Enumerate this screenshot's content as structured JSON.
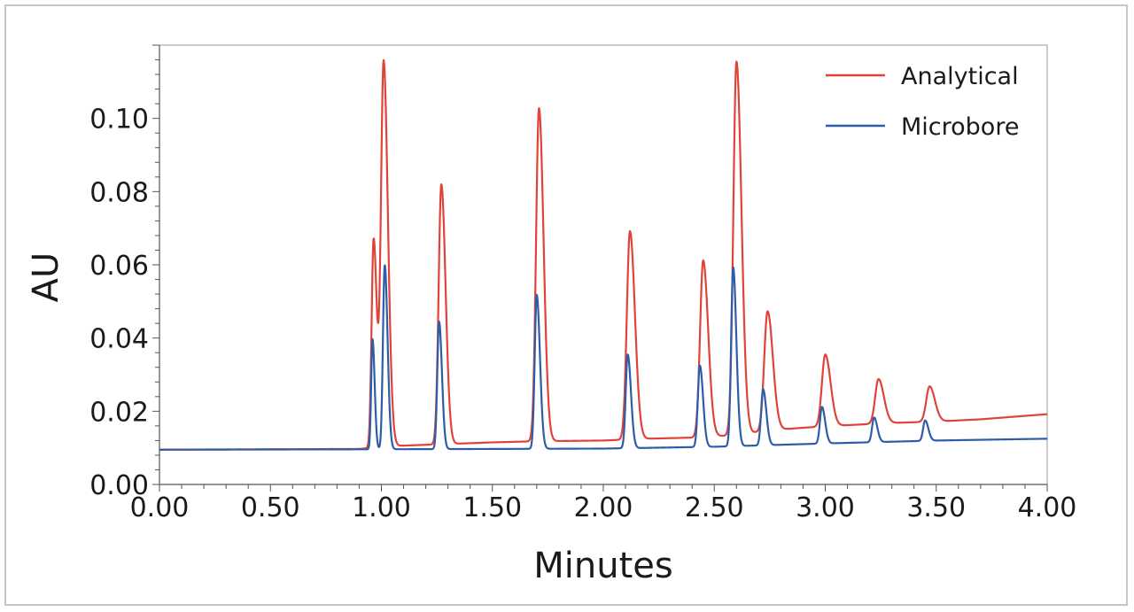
{
  "chart_data": {
    "type": "line",
    "title": "",
    "xlabel": "Minutes",
    "ylabel": "AU",
    "xlim": [
      0.0,
      4.0
    ],
    "ylim": [
      0.0,
      0.12
    ],
    "x_ticks": [
      "0.00",
      "0.50",
      "1.00",
      "1.50",
      "2.00",
      "2.50",
      "3.00",
      "3.50",
      "4.00"
    ],
    "y_ticks": [
      "0.00",
      "0.02",
      "0.04",
      "0.06",
      "0.08",
      "0.10"
    ],
    "legend_position": "top-right",
    "grid": false,
    "series": [
      {
        "name": "Analytical",
        "color": "#e0433a",
        "baseline": [
          [
            0.0,
            0.0095
          ],
          [
            0.9,
            0.0097
          ],
          [
            1.05,
            0.0105
          ],
          [
            1.5,
            0.0115
          ],
          [
            1.7,
            0.0118
          ],
          [
            2.0,
            0.012
          ],
          [
            2.2,
            0.0125
          ],
          [
            2.4,
            0.0128
          ],
          [
            2.6,
            0.0135
          ],
          [
            2.75,
            0.0148
          ],
          [
            2.9,
            0.0155
          ],
          [
            3.1,
            0.0162
          ],
          [
            3.3,
            0.0168
          ],
          [
            3.5,
            0.0172
          ],
          [
            3.7,
            0.0178
          ],
          [
            4.0,
            0.0192
          ]
        ],
        "peaks": [
          {
            "t": 0.965,
            "h": 0.0672,
            "w": 0.009
          },
          {
            "t": 1.01,
            "h": 0.1155,
            "w": 0.012
          },
          {
            "t": 1.27,
            "h": 0.082,
            "w": 0.012
          },
          {
            "t": 1.71,
            "h": 0.1028,
            "w": 0.013
          },
          {
            "t": 2.12,
            "h": 0.0692,
            "w": 0.014
          },
          {
            "t": 2.45,
            "h": 0.0612,
            "w": 0.014
          },
          {
            "t": 2.6,
            "h": 0.1155,
            "w": 0.014
          },
          {
            "t": 2.74,
            "h": 0.0473,
            "w": 0.015
          },
          {
            "t": 3.0,
            "h": 0.0355,
            "w": 0.015
          },
          {
            "t": 3.24,
            "h": 0.0288,
            "w": 0.015
          },
          {
            "t": 3.47,
            "h": 0.0268,
            "w": 0.015
          }
        ]
      },
      {
        "name": "Microbore",
        "color": "#2e5da8",
        "baseline": [
          [
            0.0,
            0.0095
          ],
          [
            0.9,
            0.0096
          ],
          [
            1.5,
            0.0097
          ],
          [
            2.0,
            0.0098
          ],
          [
            2.5,
            0.0103
          ],
          [
            3.0,
            0.0112
          ],
          [
            3.5,
            0.012
          ],
          [
            4.0,
            0.0125
          ]
        ],
        "peaks": [
          {
            "t": 0.96,
            "h": 0.0397,
            "w": 0.006
          },
          {
            "t": 1.015,
            "h": 0.06,
            "w": 0.008
          },
          {
            "t": 1.26,
            "h": 0.0445,
            "w": 0.008
          },
          {
            "t": 1.7,
            "h": 0.0518,
            "w": 0.009
          },
          {
            "t": 2.11,
            "h": 0.0355,
            "w": 0.009
          },
          {
            "t": 2.435,
            "h": 0.0325,
            "w": 0.009
          },
          {
            "t": 2.585,
            "h": 0.0594,
            "w": 0.009
          },
          {
            "t": 2.72,
            "h": 0.026,
            "w": 0.009
          },
          {
            "t": 2.985,
            "h": 0.0212,
            "w": 0.009
          },
          {
            "t": 3.22,
            "h": 0.0183,
            "w": 0.009
          },
          {
            "t": 3.45,
            "h": 0.0175,
            "w": 0.009
          }
        ]
      }
    ]
  }
}
